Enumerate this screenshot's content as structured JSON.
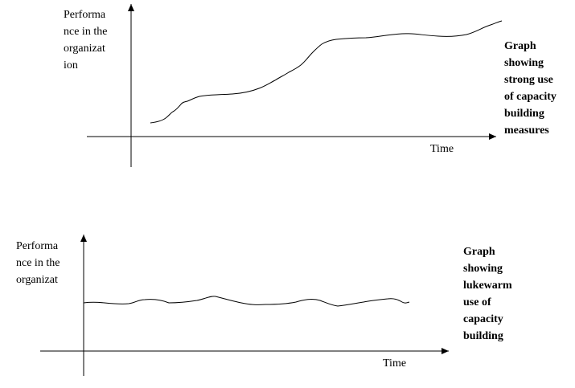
{
  "graphs": [
    {
      "y_label": "Performa\nnce in the\norganizat\nion",
      "x_label": "Time",
      "caption": "Graph\nshowing\nstrong use\nof capacity\nbuilding\nmeasures",
      "trend": "rising"
    },
    {
      "y_label": "Performa\nnce in the\norganizat",
      "x_label": "Time",
      "caption": "Graph\nshowing\nlukewarm\nuse of\ncapacity\nbuilding",
      "trend": "flat"
    }
  ]
}
